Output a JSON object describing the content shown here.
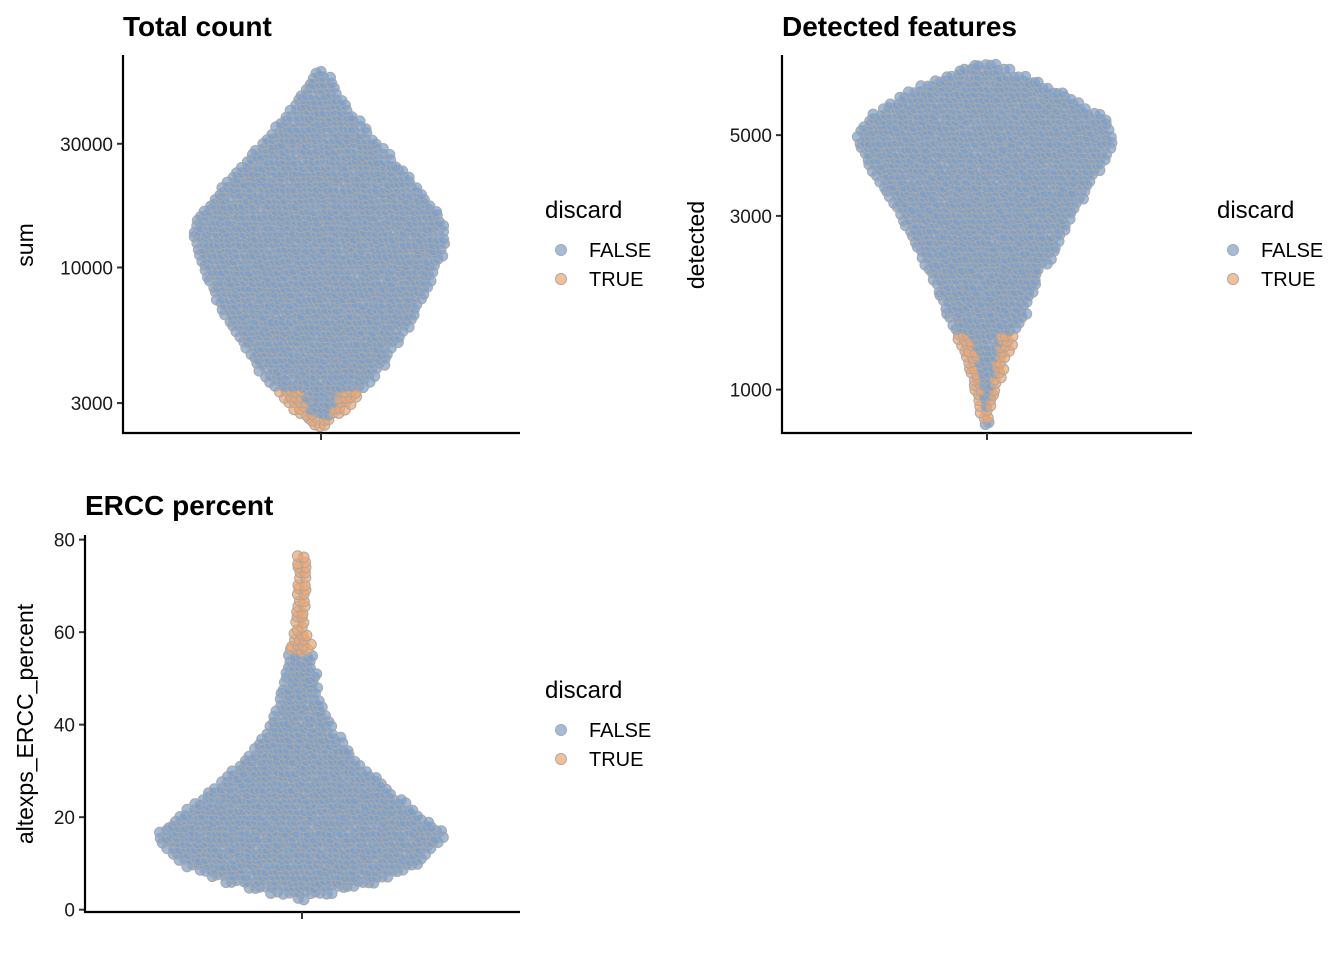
{
  "colors": {
    "FALSE": "#7b9fcb",
    "TRUE": "#f0a56c",
    "outline": "#a8a8a8",
    "whisker": "#8c8c8c"
  },
  "legend": {
    "title": "discard",
    "items": [
      {
        "label": "FALSE",
        "color": "#7b9fcb"
      },
      {
        "label": "TRUE",
        "color": "#f0a56c"
      }
    ]
  },
  "chart_data": [
    {
      "type": "scatter",
      "subtype": "violin-beeswarm",
      "title": "Total count",
      "ylabel": "sum",
      "xlabel": "",
      "scale": "log10",
      "ylim": [
        2300,
        66000
      ],
      "yticks": [
        3000,
        10000,
        30000
      ],
      "ytick_labels": [
        "3000",
        "10000",
        "30000"
      ],
      "grid": false,
      "legend_position": "right",
      "min": 2470,
      "max": 58500,
      "density_profile": [
        [
          2470,
          0.05
        ],
        [
          2800,
          0.18
        ],
        [
          4000,
          0.45
        ],
        [
          7000,
          0.75
        ],
        [
          11500,
          0.92
        ],
        [
          13500,
          0.95
        ],
        [
          15500,
          0.92
        ],
        [
          25000,
          0.58
        ],
        [
          40000,
          0.22
        ],
        [
          52000,
          0.08
        ],
        [
          58500,
          0.02
        ]
      ],
      "discard_true_range": [
        2470,
        3400
      ]
    },
    {
      "type": "scatter",
      "subtype": "violin-beeswarm",
      "title": "Detected features",
      "ylabel": "detected",
      "xlabel": "",
      "scale": "log10",
      "ylim": [
        760,
        8300
      ],
      "yticks": [
        1000,
        3000,
        5000
      ],
      "ytick_labels": [
        "1000",
        "3000",
        "5000"
      ],
      "grid": false,
      "legend_position": "right",
      "min": 810,
      "max": 7900,
      "density_profile": [
        [
          810,
          0.02
        ],
        [
          950,
          0.06
        ],
        [
          1200,
          0.14
        ],
        [
          2000,
          0.38
        ],
        [
          3000,
          0.62
        ],
        [
          4200,
          0.86
        ],
        [
          4900,
          0.95
        ],
        [
          5600,
          0.85
        ],
        [
          6500,
          0.58
        ],
        [
          7500,
          0.2
        ],
        [
          7900,
          0.05
        ]
      ],
      "discard_true_range": [
        810,
        1450
      ]
    },
    {
      "type": "scatter",
      "subtype": "violin-beeswarm",
      "title": "ERCC percent",
      "ylabel": "altexps_ERCC_percent",
      "xlabel": "",
      "scale": "linear",
      "ylim": [
        -0.5,
        81
      ],
      "yticks": [
        0,
        20,
        40,
        60,
        80
      ],
      "ytick_labels": [
        "0",
        "20",
        "40",
        "60",
        "80"
      ],
      "grid": false,
      "legend_position": "right",
      "min": 2.5,
      "max": 77,
      "density_profile": [
        [
          2.5,
          0.05
        ],
        [
          6,
          0.5
        ],
        [
          10,
          0.8
        ],
        [
          14,
          0.92
        ],
        [
          16.5,
          0.95
        ],
        [
          20,
          0.82
        ],
        [
          25,
          0.62
        ],
        [
          30,
          0.45
        ],
        [
          35,
          0.3
        ],
        [
          40,
          0.2
        ],
        [
          45,
          0.14
        ],
        [
          50,
          0.1
        ],
        [
          55,
          0.08
        ],
        [
          58,
          0.05
        ],
        [
          62,
          0.03
        ],
        [
          66,
          0.025
        ],
        [
          70,
          0.02
        ],
        [
          74,
          0.01
        ],
        [
          77,
          0.008
        ]
      ],
      "discard_true_range": [
        55,
        77
      ]
    }
  ]
}
